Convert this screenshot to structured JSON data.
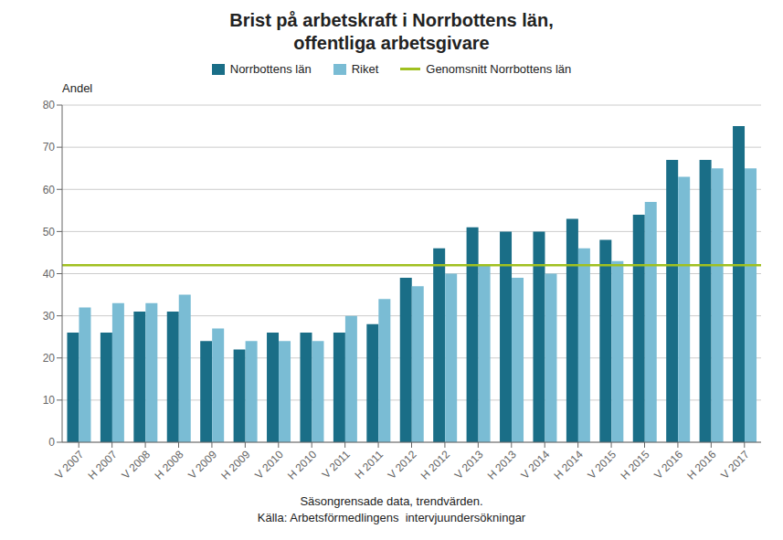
{
  "chart_data": {
    "type": "bar",
    "title": "Brist på arbetskraft i Norrbottens län,\noffentliga arbetsgivare",
    "ylabel": "Andel",
    "note": "Säsongrensade data, trendvärden.\nKälla: Arbetsförmedlingens  intervjuundersökningar",
    "categories": [
      "V 2007",
      "H 2007",
      "V 2008",
      "H 2008",
      "V 2009",
      "H 2009",
      "V 2010",
      "H 2010",
      "V 2011",
      "H 2011",
      "V 2012",
      "H 2012",
      "V 2013",
      "H 2013",
      "V 2014",
      "H 2014",
      "V 2015",
      "H 2015",
      "V 2016",
      "H 2016",
      "V 2017"
    ],
    "series": [
      {
        "name": "Norrbottens län",
        "color": "#1a6e87",
        "values": [
          26,
          26,
          31,
          31,
          24,
          22,
          26,
          26,
          26,
          28,
          39,
          46,
          51,
          50,
          50,
          53,
          48,
          54,
          67,
          67,
          75
        ]
      },
      {
        "name": "Riket",
        "color": "#7abcd4",
        "values": [
          32,
          33,
          33,
          35,
          27,
          24,
          24,
          24,
          30,
          34,
          37,
          40,
          42,
          39,
          40,
          46,
          43,
          57,
          63,
          65,
          65
        ]
      }
    ],
    "reference_line": {
      "name": "Genomsnitt Norrbottens län",
      "value": 42,
      "color": "#a0c020"
    },
    "ylim": [
      0,
      80
    ],
    "yticks": [
      0,
      10,
      20,
      30,
      40,
      50,
      60,
      70,
      80
    ],
    "grid": true,
    "legend": "top"
  }
}
